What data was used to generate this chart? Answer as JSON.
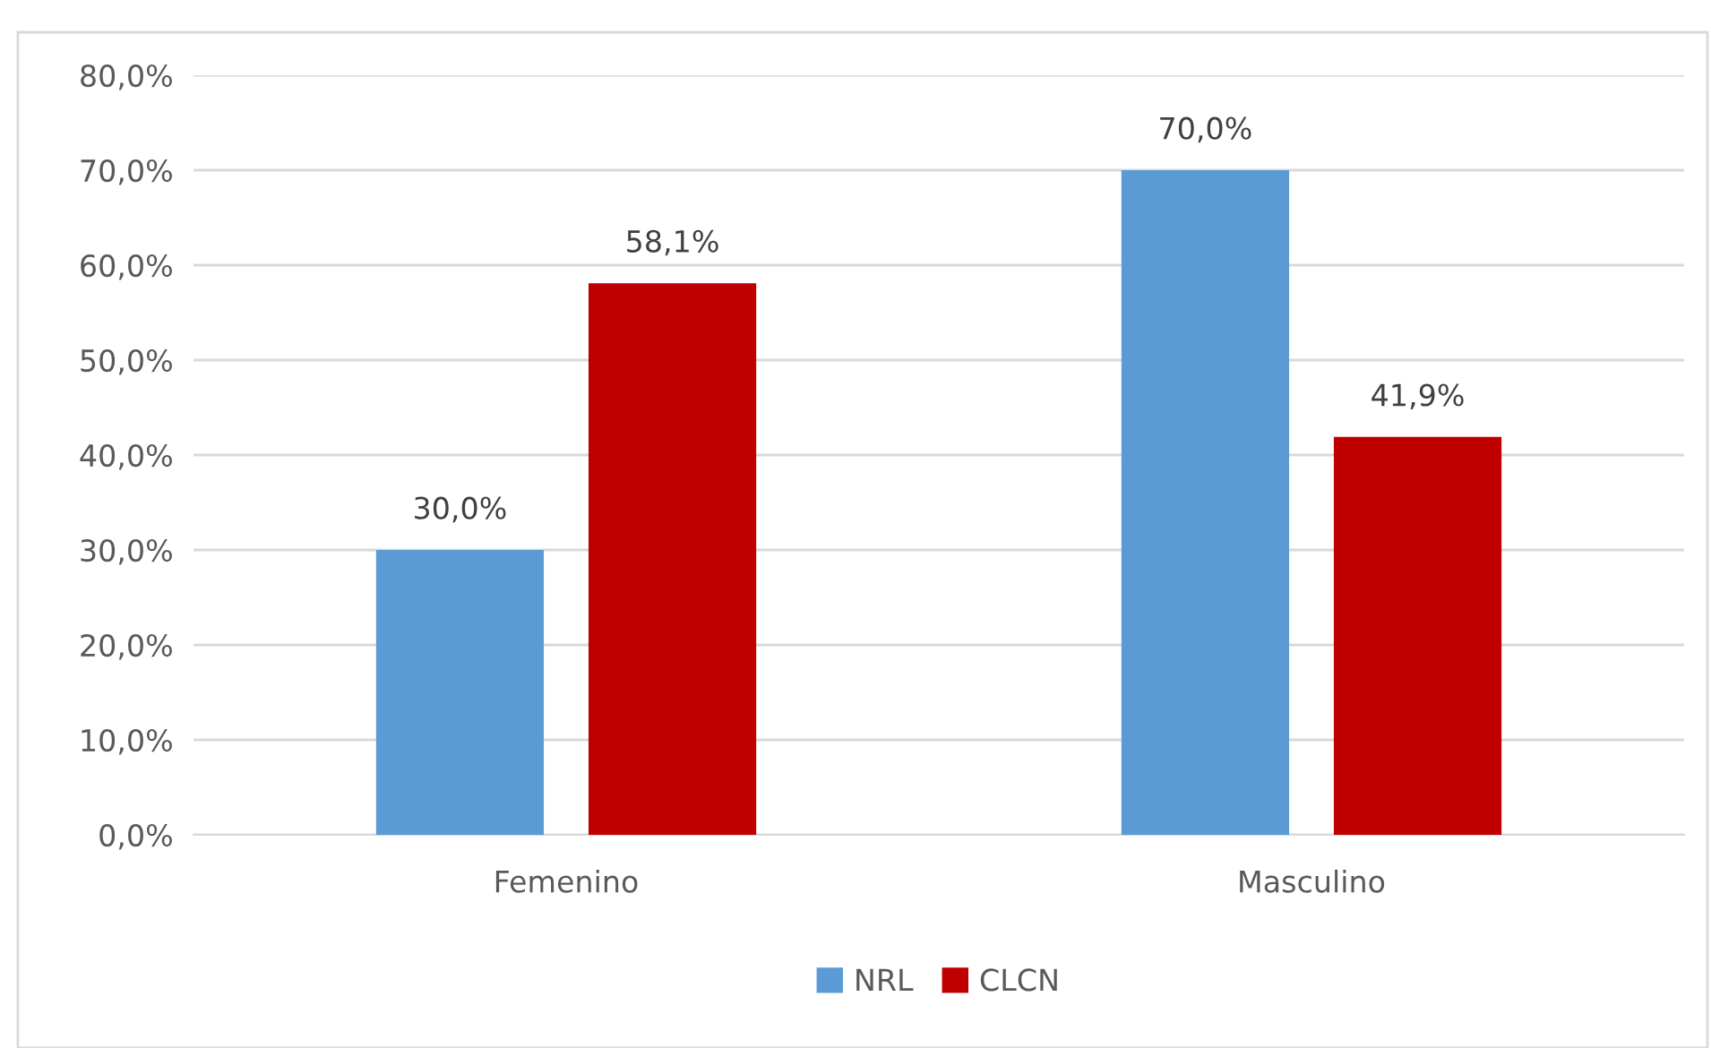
{
  "chart_data": {
    "type": "bar",
    "categories": [
      "Femenino",
      "Masculino"
    ],
    "series": [
      {
        "name": "NRL",
        "color": "#5b9bd5",
        "values": [
          30.0,
          70.0
        ],
        "value_labels": [
          "30,0%",
          "70,0%"
        ]
      },
      {
        "name": "CLCN",
        "color": "#c00000",
        "values": [
          58.1,
          41.9
        ],
        "value_labels": [
          "58,1%",
          "41,9%"
        ]
      }
    ],
    "ylim": [
      0,
      80
    ],
    "yticks": [
      {
        "value": 0,
        "label": "0,0%"
      },
      {
        "value": 10,
        "label": "10,0%"
      },
      {
        "value": 20,
        "label": "20,0%"
      },
      {
        "value": 30,
        "label": "30,0%"
      },
      {
        "value": 40,
        "label": "40,0%"
      },
      {
        "value": 50,
        "label": "50,0%"
      },
      {
        "value": 60,
        "label": "60,0%"
      },
      {
        "value": 70,
        "label": "70,0%"
      },
      {
        "value": 80,
        "label": "80,0%"
      }
    ],
    "grid": "y",
    "legend": "bottom"
  }
}
